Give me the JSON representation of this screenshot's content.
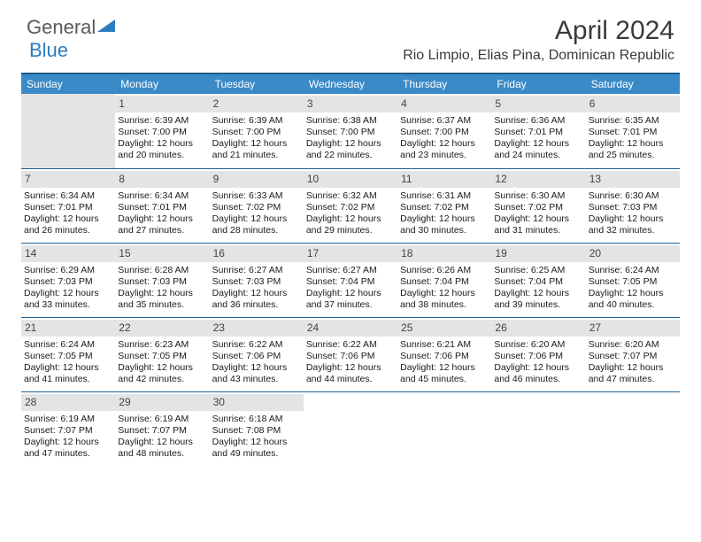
{
  "logo": {
    "general": "General",
    "blue": "Blue"
  },
  "title": "April 2024",
  "location": "Rio Limpio, Elias Pina, Dominican Republic",
  "colors": {
    "header_bg": "#3a8ac7",
    "header_border_top": "#1f5a8a",
    "cell_border": "#205e90",
    "daynum_bg": "#e4e4e4",
    "text": "#1a1a1a",
    "title_text": "#3a3a3a",
    "logo_gray": "#5a5a5a",
    "logo_blue": "#2d7cc0",
    "white": "#ffffff"
  },
  "typography": {
    "title_fontsize": 30,
    "location_fontsize": 16,
    "header_fontsize": 12,
    "daynum_fontsize": 12,
    "cell_fontsize": 10.5
  },
  "dayHeaders": [
    "Sunday",
    "Monday",
    "Tuesday",
    "Wednesday",
    "Thursday",
    "Friday",
    "Saturday"
  ],
  "weeks": [
    [
      null,
      {
        "n": "1",
        "sr": "Sunrise: 6:39 AM",
        "ss": "Sunset: 7:00 PM",
        "dl": "Daylight: 12 hours and 20 minutes."
      },
      {
        "n": "2",
        "sr": "Sunrise: 6:39 AM",
        "ss": "Sunset: 7:00 PM",
        "dl": "Daylight: 12 hours and 21 minutes."
      },
      {
        "n": "3",
        "sr": "Sunrise: 6:38 AM",
        "ss": "Sunset: 7:00 PM",
        "dl": "Daylight: 12 hours and 22 minutes."
      },
      {
        "n": "4",
        "sr": "Sunrise: 6:37 AM",
        "ss": "Sunset: 7:00 PM",
        "dl": "Daylight: 12 hours and 23 minutes."
      },
      {
        "n": "5",
        "sr": "Sunrise: 6:36 AM",
        "ss": "Sunset: 7:01 PM",
        "dl": "Daylight: 12 hours and 24 minutes."
      },
      {
        "n": "6",
        "sr": "Sunrise: 6:35 AM",
        "ss": "Sunset: 7:01 PM",
        "dl": "Daylight: 12 hours and 25 minutes."
      }
    ],
    [
      {
        "n": "7",
        "sr": "Sunrise: 6:34 AM",
        "ss": "Sunset: 7:01 PM",
        "dl": "Daylight: 12 hours and 26 minutes."
      },
      {
        "n": "8",
        "sr": "Sunrise: 6:34 AM",
        "ss": "Sunset: 7:01 PM",
        "dl": "Daylight: 12 hours and 27 minutes."
      },
      {
        "n": "9",
        "sr": "Sunrise: 6:33 AM",
        "ss": "Sunset: 7:02 PM",
        "dl": "Daylight: 12 hours and 28 minutes."
      },
      {
        "n": "10",
        "sr": "Sunrise: 6:32 AM",
        "ss": "Sunset: 7:02 PM",
        "dl": "Daylight: 12 hours and 29 minutes."
      },
      {
        "n": "11",
        "sr": "Sunrise: 6:31 AM",
        "ss": "Sunset: 7:02 PM",
        "dl": "Daylight: 12 hours and 30 minutes."
      },
      {
        "n": "12",
        "sr": "Sunrise: 6:30 AM",
        "ss": "Sunset: 7:02 PM",
        "dl": "Daylight: 12 hours and 31 minutes."
      },
      {
        "n": "13",
        "sr": "Sunrise: 6:30 AM",
        "ss": "Sunset: 7:03 PM",
        "dl": "Daylight: 12 hours and 32 minutes."
      }
    ],
    [
      {
        "n": "14",
        "sr": "Sunrise: 6:29 AM",
        "ss": "Sunset: 7:03 PM",
        "dl": "Daylight: 12 hours and 33 minutes."
      },
      {
        "n": "15",
        "sr": "Sunrise: 6:28 AM",
        "ss": "Sunset: 7:03 PM",
        "dl": "Daylight: 12 hours and 35 minutes."
      },
      {
        "n": "16",
        "sr": "Sunrise: 6:27 AM",
        "ss": "Sunset: 7:03 PM",
        "dl": "Daylight: 12 hours and 36 minutes."
      },
      {
        "n": "17",
        "sr": "Sunrise: 6:27 AM",
        "ss": "Sunset: 7:04 PM",
        "dl": "Daylight: 12 hours and 37 minutes."
      },
      {
        "n": "18",
        "sr": "Sunrise: 6:26 AM",
        "ss": "Sunset: 7:04 PM",
        "dl": "Daylight: 12 hours and 38 minutes."
      },
      {
        "n": "19",
        "sr": "Sunrise: 6:25 AM",
        "ss": "Sunset: 7:04 PM",
        "dl": "Daylight: 12 hours and 39 minutes."
      },
      {
        "n": "20",
        "sr": "Sunrise: 6:24 AM",
        "ss": "Sunset: 7:05 PM",
        "dl": "Daylight: 12 hours and 40 minutes."
      }
    ],
    [
      {
        "n": "21",
        "sr": "Sunrise: 6:24 AM",
        "ss": "Sunset: 7:05 PM",
        "dl": "Daylight: 12 hours and 41 minutes."
      },
      {
        "n": "22",
        "sr": "Sunrise: 6:23 AM",
        "ss": "Sunset: 7:05 PM",
        "dl": "Daylight: 12 hours and 42 minutes."
      },
      {
        "n": "23",
        "sr": "Sunrise: 6:22 AM",
        "ss": "Sunset: 7:06 PM",
        "dl": "Daylight: 12 hours and 43 minutes."
      },
      {
        "n": "24",
        "sr": "Sunrise: 6:22 AM",
        "ss": "Sunset: 7:06 PM",
        "dl": "Daylight: 12 hours and 44 minutes."
      },
      {
        "n": "25",
        "sr": "Sunrise: 6:21 AM",
        "ss": "Sunset: 7:06 PM",
        "dl": "Daylight: 12 hours and 45 minutes."
      },
      {
        "n": "26",
        "sr": "Sunrise: 6:20 AM",
        "ss": "Sunset: 7:06 PM",
        "dl": "Daylight: 12 hours and 46 minutes."
      },
      {
        "n": "27",
        "sr": "Sunrise: 6:20 AM",
        "ss": "Sunset: 7:07 PM",
        "dl": "Daylight: 12 hours and 47 minutes."
      }
    ],
    [
      {
        "n": "28",
        "sr": "Sunrise: 6:19 AM",
        "ss": "Sunset: 7:07 PM",
        "dl": "Daylight: 12 hours and 47 minutes."
      },
      {
        "n": "29",
        "sr": "Sunrise: 6:19 AM",
        "ss": "Sunset: 7:07 PM",
        "dl": "Daylight: 12 hours and 48 minutes."
      },
      {
        "n": "30",
        "sr": "Sunrise: 6:18 AM",
        "ss": "Sunset: 7:08 PM",
        "dl": "Daylight: 12 hours and 49 minutes."
      },
      null,
      null,
      null,
      null
    ]
  ]
}
